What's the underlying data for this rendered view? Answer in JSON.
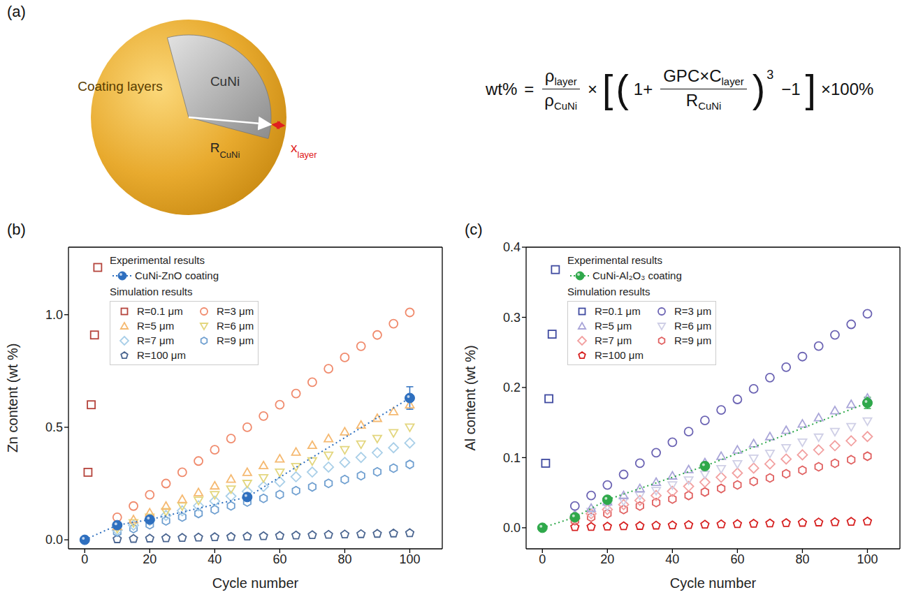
{
  "diagram": {
    "panel": "(a)",
    "labels": {
      "coating": "Coating layers",
      "core": "CuNi",
      "radius": {
        "text": "R",
        "sub": "CuNi"
      },
      "thickness": {
        "text": "x",
        "sub": "layer"
      }
    },
    "formula": [
      {
        "kind": "text",
        "text": "wt%"
      },
      {
        "kind": "text",
        "text": "="
      },
      {
        "kind": "frac",
        "num": [
          {
            "text": "ρ",
            "sub": "layer"
          }
        ],
        "den": [
          {
            "text": "ρ",
            "sub": "CuNi"
          }
        ]
      },
      {
        "kind": "text",
        "text": "×"
      },
      {
        "kind": "big",
        "text": "["
      },
      {
        "kind": "big",
        "text": "("
      },
      {
        "kind": "text",
        "text": "1+"
      },
      {
        "kind": "frac",
        "num": [
          {
            "text": "GPC×C",
            "sub": "layer"
          }
        ],
        "den": [
          {
            "text": "R",
            "sub": "CuNi"
          }
        ]
      },
      {
        "kind": "big",
        "text": ")"
      },
      {
        "kind": "sup",
        "text": "3"
      },
      {
        "kind": "text",
        "text": "−1"
      },
      {
        "kind": "big",
        "text": "]"
      },
      {
        "kind": "text",
        "text": "×100%"
      }
    ]
  },
  "chart_data": [
    {
      "type": "scatter",
      "panel": "(b)",
      "xlabel": "Cycle number",
      "ylabel": "Zn content (wt %)",
      "xlim": [
        -5,
        110
      ],
      "xticks": [
        0,
        20,
        40,
        60,
        80,
        100
      ],
      "ylim": [
        -0.04,
        1.3
      ],
      "yticks": [
        {
          "value": 0,
          "label": "0.0"
        },
        0.5,
        {
          "value": 1,
          "label": "1.0"
        }
      ],
      "legend": "upper left",
      "legend_groups": [
        {
          "title": "Experimental results",
          "members": [
            "CuNi-ZnO coating"
          ]
        },
        {
          "title": "Simulation results",
          "members": [
            "R=0.1 μm",
            "R=3 μm",
            "R=5 μm",
            "R=6 μm",
            "R=7 μm",
            "R=9 μm",
            "R=100 μm"
          ]
        }
      ],
      "series": [
        {
          "name": "CuNi-ZnO coating",
          "color": "#2e6fbf",
          "marker": "filled_circle",
          "line_style": "dotted",
          "x": [
            0,
            10,
            20,
            50,
            100
          ],
          "values": [
            0,
            0.065,
            0.09,
            0.19,
            0.63
          ],
          "errors": [
            0.005,
            0.01,
            0.01,
            0.015,
            0.05
          ]
        },
        {
          "name": "R=0.1 μm",
          "color": "#b5443c",
          "marker": "square",
          "line_style": "none",
          "x": [
            1,
            2,
            3,
            4
          ],
          "values": [
            0.3,
            0.6,
            0.91,
            1.21
          ]
        },
        {
          "name": "R=3 μm",
          "color": "#f08a6c",
          "marker": "circle",
          "line_style": "none",
          "x": [
            10,
            15,
            20,
            25,
            30,
            35,
            40,
            45,
            50,
            55,
            60,
            65,
            70,
            75,
            80,
            85,
            90,
            95,
            100
          ],
          "values": [
            0.1,
            0.15,
            0.2,
            0.25,
            0.3,
            0.35,
            0.4,
            0.45,
            0.5,
            0.55,
            0.6,
            0.65,
            0.7,
            0.76,
            0.81,
            0.86,
            0.91,
            0.96,
            1.01
          ]
        },
        {
          "name": "R=5 μm",
          "color": "#f5b971",
          "marker": "triangle",
          "line_style": "none",
          "x": [
            10,
            15,
            20,
            25,
            30,
            35,
            40,
            45,
            50,
            55,
            60,
            65,
            70,
            75,
            80,
            85,
            90,
            95,
            100
          ],
          "values": [
            0.06,
            0.09,
            0.12,
            0.15,
            0.18,
            0.21,
            0.24,
            0.27,
            0.3,
            0.33,
            0.36,
            0.39,
            0.42,
            0.45,
            0.48,
            0.51,
            0.54,
            0.57,
            0.6
          ]
        },
        {
          "name": "R=6 μm",
          "color": "#e3d67e",
          "marker": "triangle_down",
          "line_style": "none",
          "x": [
            10,
            15,
            20,
            25,
            30,
            35,
            40,
            45,
            50,
            55,
            60,
            65,
            70,
            75,
            80,
            85,
            90,
            95,
            100
          ],
          "values": [
            0.05,
            0.075,
            0.1,
            0.125,
            0.15,
            0.175,
            0.2,
            0.225,
            0.25,
            0.275,
            0.3,
            0.325,
            0.35,
            0.375,
            0.4,
            0.425,
            0.45,
            0.475,
            0.5
          ]
        },
        {
          "name": "R=7 μm",
          "color": "#a9cfe8",
          "marker": "diamond",
          "line_style": "none",
          "x": [
            10,
            15,
            20,
            25,
            30,
            35,
            40,
            45,
            50,
            55,
            60,
            65,
            70,
            75,
            80,
            85,
            90,
            95,
            100
          ],
          "values": [
            0.043,
            0.065,
            0.086,
            0.108,
            0.129,
            0.151,
            0.172,
            0.194,
            0.215,
            0.237,
            0.258,
            0.28,
            0.301,
            0.323,
            0.344,
            0.366,
            0.387,
            0.409,
            0.43
          ]
        },
        {
          "name": "R=9 μm",
          "color": "#6f9fd0",
          "marker": "hexagon",
          "line_style": "none",
          "x": [
            10,
            15,
            20,
            25,
            30,
            35,
            40,
            45,
            50,
            55,
            60,
            65,
            70,
            75,
            80,
            85,
            90,
            95,
            100
          ],
          "values": [
            0.034,
            0.05,
            0.067,
            0.084,
            0.101,
            0.117,
            0.134,
            0.151,
            0.168,
            0.184,
            0.201,
            0.218,
            0.235,
            0.251,
            0.268,
            0.285,
            0.302,
            0.318,
            0.335
          ]
        },
        {
          "name": "R=100 μm",
          "color": "#4a6590",
          "marker": "pentagon",
          "line_style": "none",
          "x": [
            10,
            15,
            20,
            25,
            30,
            35,
            40,
            45,
            50,
            55,
            60,
            65,
            70,
            75,
            80,
            85,
            90,
            95,
            100
          ],
          "values": [
            0.003,
            0.0045,
            0.006,
            0.0075,
            0.009,
            0.0105,
            0.012,
            0.0135,
            0.015,
            0.0165,
            0.018,
            0.0195,
            0.021,
            0.0225,
            0.024,
            0.0255,
            0.027,
            0.0285,
            0.03
          ]
        }
      ]
    },
    {
      "type": "scatter",
      "panel": "(c)",
      "xlabel": "Cycle number",
      "ylabel": "Al content (wt %)",
      "xlim": [
        -5,
        110
      ],
      "xticks": [
        0,
        20,
        40,
        60,
        80,
        100
      ],
      "ylim": [
        -0.03,
        0.4
      ],
      "yticks": [
        {
          "value": 0,
          "label": "0.0"
        },
        0.1,
        0.2,
        0.3,
        0.4
      ],
      "legend": "upper left",
      "legend_groups": [
        {
          "title": "Experimental results",
          "members": [
            "CuNi-Al₂O₃ coating"
          ]
        },
        {
          "title": "Simulation results",
          "members": [
            "R=0.1 μm",
            "R=3 μm",
            "R=5 μm",
            "R=6 μm",
            "R=7 μm",
            "R=9 μm",
            "R=100 μm"
          ]
        }
      ],
      "series": [
        {
          "name": "CuNi-Al₂O₃ coating",
          "color": "#2ea84a",
          "marker": "filled_circle",
          "line_style": "dotted",
          "x": [
            0,
            10,
            20,
            50,
            100
          ],
          "values": [
            0,
            0.015,
            0.04,
            0.088,
            0.178
          ],
          "errors": [
            0.003,
            0.005,
            0.004,
            0.005,
            0.008
          ]
        },
        {
          "name": "R=0.1 μm",
          "color": "#3f4aa0",
          "marker": "square",
          "line_style": "none",
          "x": [
            1,
            2,
            3,
            4
          ],
          "values": [
            0.092,
            0.184,
            0.276,
            0.368
          ]
        },
        {
          "name": "R=3 μm",
          "color": "#6b63b3",
          "marker": "circle",
          "line_style": "none",
          "x": [
            10,
            15,
            20,
            25,
            30,
            35,
            40,
            45,
            50,
            55,
            60,
            65,
            70,
            75,
            80,
            85,
            90,
            95,
            100
          ],
          "values": [
            0.031,
            0.046,
            0.061,
            0.076,
            0.092,
            0.107,
            0.122,
            0.137,
            0.153,
            0.168,
            0.183,
            0.198,
            0.214,
            0.229,
            0.244,
            0.259,
            0.275,
            0.29,
            0.305
          ]
        },
        {
          "name": "R=5 μm",
          "color": "#a9a5d8",
          "marker": "triangle",
          "line_style": "none",
          "x": [
            10,
            15,
            20,
            25,
            30,
            35,
            40,
            45,
            50,
            55,
            60,
            65,
            70,
            75,
            80,
            85,
            90,
            95,
            100
          ],
          "values": [
            0.019,
            0.028,
            0.037,
            0.046,
            0.056,
            0.065,
            0.074,
            0.083,
            0.093,
            0.102,
            0.111,
            0.12,
            0.13,
            0.139,
            0.148,
            0.157,
            0.167,
            0.176,
            0.185
          ]
        },
        {
          "name": "R=6 μm",
          "color": "#cfcfe6",
          "marker": "triangle_down",
          "line_style": "none",
          "x": [
            10,
            15,
            20,
            25,
            30,
            35,
            40,
            45,
            50,
            55,
            60,
            65,
            70,
            75,
            80,
            85,
            90,
            95,
            100
          ],
          "values": [
            0.015,
            0.023,
            0.03,
            0.038,
            0.046,
            0.053,
            0.061,
            0.068,
            0.076,
            0.084,
            0.091,
            0.099,
            0.106,
            0.114,
            0.122,
            0.129,
            0.137,
            0.144,
            0.152
          ]
        },
        {
          "name": "R=7 μm",
          "color": "#f2a0a0",
          "marker": "diamond",
          "line_style": "none",
          "x": [
            10,
            15,
            20,
            25,
            30,
            35,
            40,
            45,
            50,
            55,
            60,
            65,
            70,
            75,
            80,
            85,
            90,
            95,
            100
          ],
          "values": [
            0.013,
            0.02,
            0.026,
            0.033,
            0.039,
            0.046,
            0.052,
            0.059,
            0.065,
            0.072,
            0.078,
            0.085,
            0.091,
            0.098,
            0.104,
            0.111,
            0.117,
            0.124,
            0.13
          ]
        },
        {
          "name": "R=9 μm",
          "color": "#e06060",
          "marker": "hexagon",
          "line_style": "none",
          "x": [
            10,
            15,
            20,
            25,
            30,
            35,
            40,
            45,
            50,
            55,
            60,
            65,
            70,
            75,
            80,
            85,
            90,
            95,
            100
          ],
          "values": [
            0.01,
            0.015,
            0.02,
            0.026,
            0.031,
            0.036,
            0.041,
            0.046,
            0.051,
            0.056,
            0.061,
            0.066,
            0.071,
            0.077,
            0.082,
            0.087,
            0.092,
            0.097,
            0.102
          ]
        },
        {
          "name": "R=100 μm",
          "color": "#d62020",
          "marker": "pentagon",
          "line_style": "none",
          "x": [
            10,
            15,
            20,
            25,
            30,
            35,
            40,
            45,
            50,
            55,
            60,
            65,
            70,
            75,
            80,
            85,
            90,
            95,
            100
          ],
          "values": [
            0.001,
            0.0014,
            0.0018,
            0.0023,
            0.0027,
            0.0032,
            0.0036,
            0.0041,
            0.0045,
            0.005,
            0.0054,
            0.0059,
            0.0063,
            0.0068,
            0.0072,
            0.0077,
            0.0081,
            0.0086,
            0.009
          ]
        }
      ]
    }
  ]
}
